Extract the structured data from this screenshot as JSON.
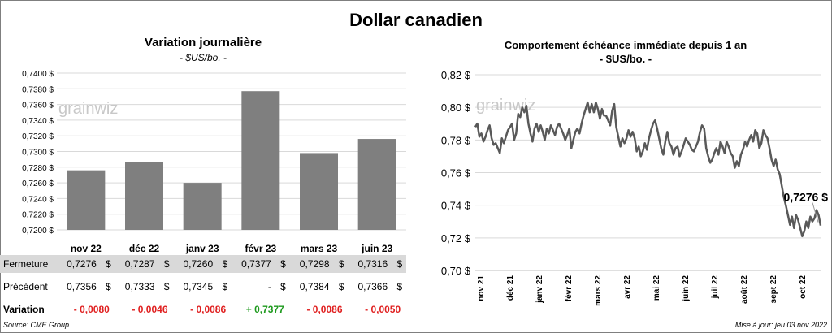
{
  "title": "Dollar canadien",
  "left_panel": {
    "title": "Variation  journalière",
    "unit": "- $US/bo. -",
    "table": {
      "rows": [
        {
          "label": "Fermeture",
          "values": [
            "0,7276",
            "0,7287",
            "0,7260",
            "0,7377",
            "0,7298",
            "0,7316"
          ],
          "unit": "$"
        },
        {
          "label": "Précédent",
          "values": [
            "0,7356",
            "0,7333",
            "0,7345",
            "-",
            "0,7384",
            "0,7366"
          ],
          "unit": "$"
        },
        {
          "label": "Variation",
          "values": [
            "- 0,0080",
            "- 0,0046",
            "- 0,0086",
            "+ 0,7377",
            "- 0,0086",
            "- 0,0050"
          ]
        }
      ],
      "variation_colors": [
        "#e02020",
        "#e02020",
        "#e02020",
        "#1e9a1e",
        "#e02020",
        "#e02020"
      ],
      "fermeture_bg": "#d9d9d9"
    }
  },
  "right_panel": {
    "title": "Comportement échéance immédiate depuis 1 an",
    "unit": "- $US/bo. -",
    "last_label": "0,7276 $"
  },
  "watermark": "grainwiz",
  "source": "Source: CME Group",
  "updated": "Mise à jour: jeu 03 nov 2022",
  "chart_data": [
    {
      "type": "bar",
      "categories": [
        "nov 22",
        "déc 22",
        "janv 23",
        "févr 23",
        "mars 23",
        "juin 23"
      ],
      "values": [
        0.7276,
        0.7287,
        0.726,
        0.7377,
        0.7298,
        0.7316
      ],
      "yticks": [
        "0,7200 $",
        "0,7220 $",
        "0,7240 $",
        "0,7260 $",
        "0,7280 $",
        "0,7300 $",
        "0,7320 $",
        "0,7340 $",
        "0,7360 $",
        "0,7380 $",
        "0,7400 $"
      ],
      "ylim": [
        0.72,
        0.74
      ],
      "grid": true,
      "bar_color": "#7f7f7f"
    },
    {
      "type": "line",
      "xticks": [
        "nov 21",
        "déc 21",
        "janv 22",
        "févr 22",
        "mars 22",
        "avr 22",
        "mai 22",
        "juin 22",
        "juil 22",
        "août 22",
        "sept 22",
        "oct 22"
      ],
      "yticks": [
        "0,70 $",
        "0,72 $",
        "0,74 $",
        "0,76 $",
        "0,78 $",
        "0,80 $",
        "0,82 $"
      ],
      "ylim": [
        0.7,
        0.82
      ],
      "grid": true,
      "line_color": "#595959",
      "values": [
        0.788,
        0.79,
        0.782,
        0.784,
        0.779,
        0.782,
        0.786,
        0.789,
        0.781,
        0.777,
        0.778,
        0.775,
        0.772,
        0.781,
        0.778,
        0.782,
        0.786,
        0.788,
        0.79,
        0.78,
        0.784,
        0.796,
        0.794,
        0.8,
        0.797,
        0.801,
        0.79,
        0.784,
        0.779,
        0.787,
        0.79,
        0.785,
        0.789,
        0.785,
        0.78,
        0.787,
        0.784,
        0.789,
        0.786,
        0.783,
        0.788,
        0.79,
        0.787,
        0.784,
        0.78,
        0.783,
        0.787,
        0.775,
        0.78,
        0.785,
        0.787,
        0.784,
        0.79,
        0.795,
        0.799,
        0.803,
        0.797,
        0.802,
        0.797,
        0.803,
        0.799,
        0.793,
        0.799,
        0.795,
        0.795,
        0.792,
        0.789,
        0.798,
        0.802,
        0.788,
        0.782,
        0.776,
        0.781,
        0.778,
        0.781,
        0.786,
        0.782,
        0.785,
        0.781,
        0.773,
        0.776,
        0.77,
        0.773,
        0.778,
        0.774,
        0.781,
        0.786,
        0.79,
        0.792,
        0.787,
        0.781,
        0.775,
        0.771,
        0.779,
        0.785,
        0.778,
        0.776,
        0.771,
        0.775,
        0.776,
        0.77,
        0.773,
        0.777,
        0.781,
        0.779,
        0.777,
        0.774,
        0.773,
        0.776,
        0.779,
        0.785,
        0.789,
        0.787,
        0.775,
        0.77,
        0.766,
        0.768,
        0.772,
        0.775,
        0.771,
        0.779,
        0.776,
        0.772,
        0.779,
        0.776,
        0.772,
        0.77,
        0.763,
        0.767,
        0.764,
        0.771,
        0.774,
        0.779,
        0.776,
        0.78,
        0.783,
        0.779,
        0.786,
        0.784,
        0.775,
        0.778,
        0.786,
        0.783,
        0.781,
        0.775,
        0.768,
        0.764,
        0.768,
        0.762,
        0.759,
        0.752,
        0.745,
        0.74,
        0.734,
        0.728,
        0.733,
        0.726,
        0.734,
        0.731,
        0.726,
        0.721,
        0.724,
        0.73,
        0.726,
        0.733,
        0.73,
        0.732,
        0.737,
        0.734,
        0.7276
      ],
      "last_value": 0.7276
    }
  ]
}
